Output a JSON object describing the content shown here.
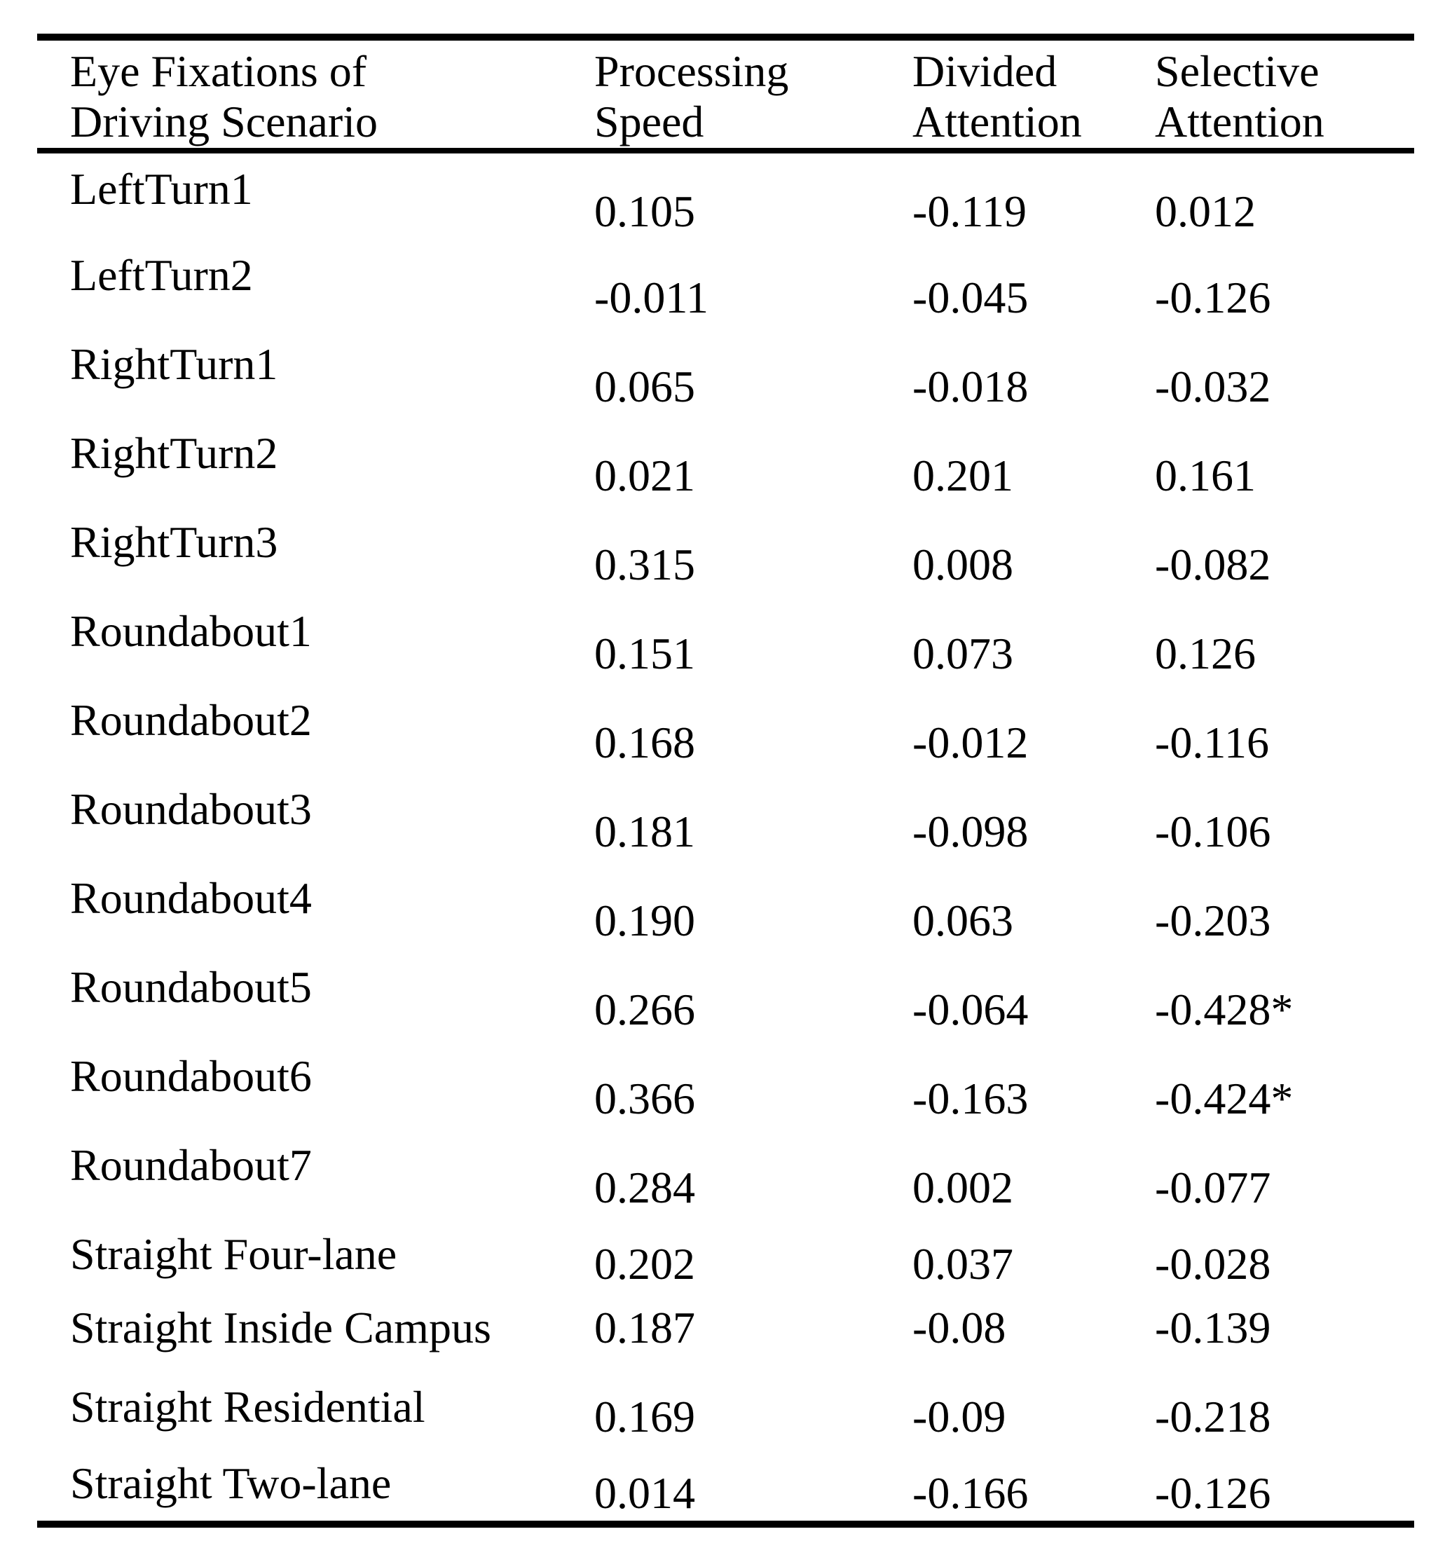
{
  "document": {
    "type": "correlation-table",
    "colors": {
      "background": "#ffffff",
      "text": "#000000",
      "rule": "#000000"
    },
    "table": {
      "headers": [
        {
          "line1": "Eye Fixations of",
          "line2": "Driving Scenario"
        },
        {
          "line1": "Processing",
          "line2": "Speed"
        },
        {
          "line1": "Divided",
          "line2": "Attention"
        },
        {
          "line1": "Selective",
          "line2": "Attention"
        }
      ],
      "rows": [
        {
          "label": "LeftTurn1",
          "processing_speed": "0.105",
          "divided_attention": "-0.119",
          "selective_attention": "0.012"
        },
        {
          "label": "LeftTurn2",
          "processing_speed": "-0.011",
          "divided_attention": "-0.045",
          "selective_attention": "-0.126"
        },
        {
          "label": "RightTurn1",
          "processing_speed": "0.065",
          "divided_attention": "-0.018",
          "selective_attention": "-0.032"
        },
        {
          "label": "RightTurn2",
          "processing_speed": "0.021",
          "divided_attention": "0.201",
          "selective_attention": "0.161"
        },
        {
          "label": "RightTurn3",
          "processing_speed": "0.315",
          "divided_attention": "0.008",
          "selective_attention": "-0.082"
        },
        {
          "label": "Roundabout1",
          "processing_speed": "0.151",
          "divided_attention": "0.073",
          "selective_attention": "0.126"
        },
        {
          "label": "Roundabout2",
          "processing_speed": "0.168",
          "divided_attention": "-0.012",
          "selective_attention": "-0.116"
        },
        {
          "label": "Roundabout3",
          "processing_speed": "0.181",
          "divided_attention": "-0.098",
          "selective_attention": "-0.106"
        },
        {
          "label": "Roundabout4",
          "processing_speed": "0.190",
          "divided_attention": "0.063",
          "selective_attention": "-0.203"
        },
        {
          "label": "Roundabout5",
          "processing_speed": "0.266",
          "divided_attention": "-0.064",
          "selective_attention": "-0.428*"
        },
        {
          "label": "Roundabout6",
          "processing_speed": "0.366",
          "divided_attention": "-0.163",
          "selective_attention": "-0.424*"
        },
        {
          "label": "Roundabout7",
          "processing_speed": "0.284",
          "divided_attention": "0.002",
          "selective_attention": "-0.077"
        },
        {
          "label": "Straight Four-lane",
          "processing_speed": "0.202",
          "divided_attention": "0.037",
          "selective_attention": "-0.028"
        },
        {
          "label": "Straight Inside Campus",
          "processing_speed": "0.187",
          "divided_attention": "-0.08",
          "selective_attention": "-0.139"
        },
        {
          "label": "Straight Residential",
          "processing_speed": "0.169",
          "divided_attention": "-0.09",
          "selective_attention": "-0.218"
        },
        {
          "label": "Straight Two-lane",
          "processing_speed": "0.014",
          "divided_attention": "-0.166",
          "selective_attention": "-0.126"
        }
      ]
    }
  }
}
